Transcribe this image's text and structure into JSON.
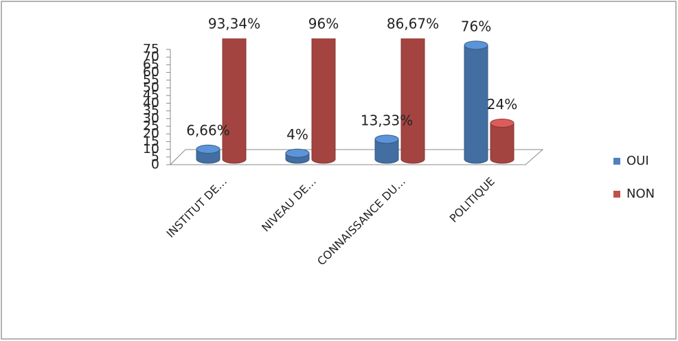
{
  "chart_data": {
    "type": "bar3d",
    "categories": [
      "INSTITUT DE…",
      "NIVEAU DE…",
      "CONNAISSANCE DU…",
      "POLITIQUE"
    ],
    "series": [
      {
        "name": "OUI",
        "color": "#4f81bd",
        "values": [
          6.66,
          4,
          13.33,
          76
        ],
        "value_labels": [
          "6,66%",
          "4%",
          "13,33%",
          "76%"
        ]
      },
      {
        "name": "NON",
        "color": "#c0504d",
        "values": [
          93.34,
          96,
          86.67,
          24
        ],
        "value_labels": [
          "93,34%",
          "96%",
          "86,67%",
          "24%"
        ]
      }
    ],
    "ylim": [
      0,
      75
    ],
    "yticks": [
      0,
      5,
      10,
      15,
      20,
      25,
      30,
      35,
      40,
      45,
      50,
      55,
      60,
      65,
      70,
      75
    ],
    "legend": "right"
  }
}
